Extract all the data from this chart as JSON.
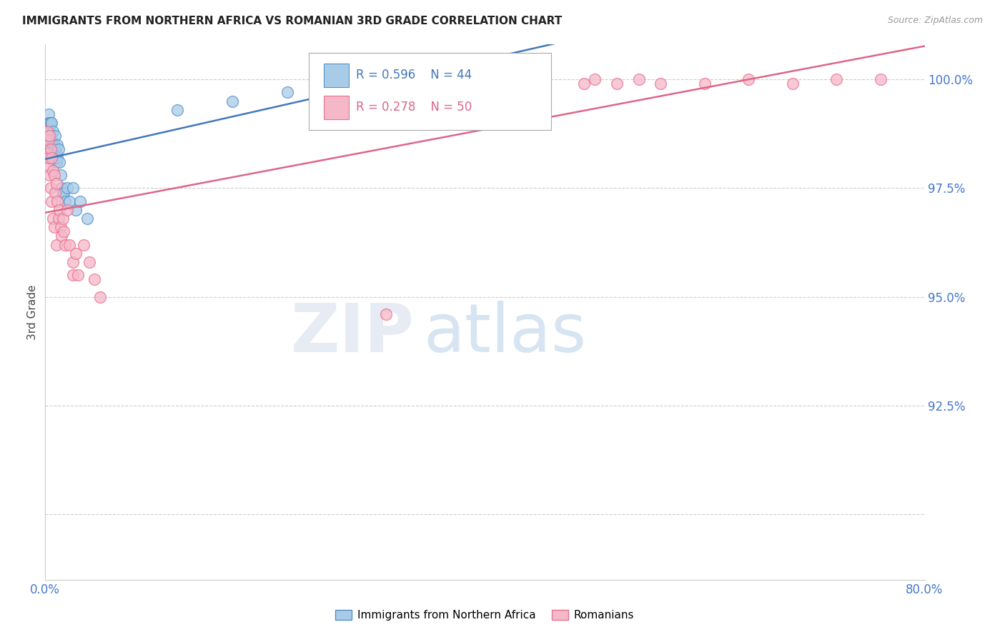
{
  "title": "IMMIGRANTS FROM NORTHERN AFRICA VS ROMANIAN 3RD GRADE CORRELATION CHART",
  "source": "Source: ZipAtlas.com",
  "ylabel": "3rd Grade",
  "xlim": [
    0.0,
    0.8
  ],
  "ylim": [
    0.885,
    1.008
  ],
  "xticks": [
    0.0,
    0.1,
    0.2,
    0.3,
    0.4,
    0.5,
    0.6,
    0.7,
    0.8
  ],
  "ytick_positions": [
    0.9,
    0.925,
    0.95,
    0.975,
    1.0
  ],
  "ytick_labels_right": [
    "",
    "92.5%",
    "95.0%",
    "97.5%",
    "100.0%"
  ],
  "blue_R": 0.596,
  "blue_N": 44,
  "pink_R": 0.278,
  "pink_N": 50,
  "blue_color": "#a8cce8",
  "pink_color": "#f5b8c8",
  "blue_edge_color": "#5590c8",
  "pink_edge_color": "#e87090",
  "blue_line_color": "#4477bb",
  "pink_line_color": "#dd6688",
  "legend_label_blue": "Immigrants from Northern Africa",
  "legend_label_pink": "Romanians",
  "watermark_zip": "ZIP",
  "watermark_atlas": "atlas",
  "blue_scatter_x": [
    0.001,
    0.002,
    0.002,
    0.003,
    0.003,
    0.003,
    0.004,
    0.004,
    0.004,
    0.005,
    0.005,
    0.005,
    0.006,
    0.006,
    0.007,
    0.007,
    0.007,
    0.008,
    0.008,
    0.009,
    0.009,
    0.01,
    0.01,
    0.011,
    0.011,
    0.012,
    0.013,
    0.014,
    0.015,
    0.016,
    0.017,
    0.018,
    0.02,
    0.022,
    0.025,
    0.028,
    0.032,
    0.038,
    0.12,
    0.17,
    0.22,
    0.26,
    0.3,
    0.32
  ],
  "blue_scatter_y": [
    0.983,
    0.99,
    0.985,
    0.992,
    0.988,
    0.985,
    0.99,
    0.988,
    0.985,
    0.99,
    0.987,
    0.983,
    0.99,
    0.986,
    0.988,
    0.985,
    0.982,
    0.985,
    0.982,
    0.987,
    0.984,
    0.983,
    0.981,
    0.985,
    0.982,
    0.984,
    0.981,
    0.978,
    0.975,
    0.974,
    0.974,
    0.972,
    0.975,
    0.972,
    0.975,
    0.97,
    0.972,
    0.968,
    0.993,
    0.995,
    0.997,
    0.998,
    0.999,
    1.0
  ],
  "pink_scatter_x": [
    0.001,
    0.002,
    0.002,
    0.003,
    0.003,
    0.004,
    0.004,
    0.005,
    0.005,
    0.006,
    0.006,
    0.007,
    0.007,
    0.008,
    0.008,
    0.009,
    0.01,
    0.01,
    0.011,
    0.012,
    0.013,
    0.014,
    0.015,
    0.016,
    0.017,
    0.018,
    0.02,
    0.022,
    0.025,
    0.025,
    0.028,
    0.03,
    0.035,
    0.04,
    0.045,
    0.05,
    0.38,
    0.42,
    0.45,
    0.49,
    0.5,
    0.52,
    0.54,
    0.56,
    0.6,
    0.64,
    0.68,
    0.72,
    0.76,
    0.31
  ],
  "pink_scatter_y": [
    0.983,
    0.988,
    0.98,
    0.986,
    0.982,
    0.987,
    0.978,
    0.984,
    0.975,
    0.982,
    0.972,
    0.979,
    0.968,
    0.978,
    0.966,
    0.974,
    0.976,
    0.962,
    0.972,
    0.968,
    0.97,
    0.966,
    0.964,
    0.968,
    0.965,
    0.962,
    0.97,
    0.962,
    0.958,
    0.955,
    0.96,
    0.955,
    0.962,
    0.958,
    0.954,
    0.95,
    0.998,
    0.999,
    0.999,
    0.999,
    1.0,
    0.999,
    1.0,
    0.999,
    0.999,
    1.0,
    0.999,
    1.0,
    1.0,
    0.946
  ]
}
